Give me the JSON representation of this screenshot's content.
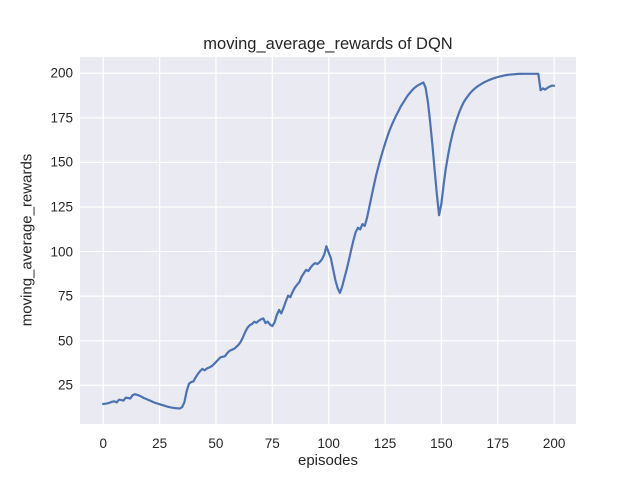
{
  "chart_data": {
    "type": "line",
    "title": "moving_average_rewards of DQN",
    "xlabel": "episodes",
    "ylabel": "moving_average_rewards",
    "legend": null,
    "grid": true,
    "xticks": [
      0,
      25,
      50,
      75,
      100,
      125,
      150,
      175,
      200
    ],
    "yticks": [
      25,
      50,
      75,
      100,
      125,
      150,
      175,
      200
    ],
    "xlim": [
      -10.3,
      209.7
    ],
    "ylim": [
      3.3,
      209.1
    ],
    "style": {
      "line_color": "#4c72b0",
      "line_width": 2.2,
      "axes_bg": "#eaeaf2",
      "grid_color": "#ffffff",
      "text_color": "#262626",
      "figure_bg": "#ffffff"
    },
    "series": [
      {
        "name": "moving_average_rewards",
        "x_start": 0,
        "x_step": 1,
        "values": [
          14.5,
          14.7,
          14.9,
          15.3,
          15.8,
          16.0,
          15.4,
          16.9,
          16.7,
          16.4,
          18.1,
          17.9,
          17.6,
          19.4,
          20.0,
          19.7,
          19.2,
          18.6,
          17.9,
          17.4,
          16.8,
          16.3,
          15.7,
          15.2,
          14.8,
          14.4,
          14.0,
          13.6,
          13.2,
          12.9,
          12.6,
          12.4,
          12.2,
          12.1,
          12.0,
          12.8,
          15.5,
          21.5,
          25.8,
          26.8,
          27.2,
          29.5,
          31.4,
          33.0,
          34.2,
          33.4,
          34.4,
          35.0,
          35.6,
          36.8,
          38.0,
          39.4,
          40.7,
          41.0,
          41.3,
          43.0,
          44.3,
          44.9,
          45.4,
          46.5,
          47.7,
          49.4,
          52.0,
          55.0,
          57.3,
          58.7,
          59.4,
          60.6,
          60.1,
          61.2,
          62.0,
          62.5,
          59.9,
          60.7,
          59.0,
          58.2,
          60.3,
          64.4,
          67.3,
          65.3,
          68.6,
          72.0,
          75.3,
          74.4,
          77.4,
          79.8,
          81.4,
          82.9,
          85.9,
          87.9,
          89.7,
          89.1,
          91.0,
          92.6,
          93.5,
          93.0,
          94.1,
          95.6,
          98.2,
          103.0,
          99.4,
          96.2,
          89.9,
          83.9,
          79.4,
          76.8,
          80.4,
          85.4,
          90.0,
          95.5,
          101.0,
          106.4,
          110.9,
          113.4,
          112.4,
          115.4,
          114.4,
          118.9,
          124.9,
          130.9,
          136.9,
          142.4,
          147.4,
          152.0,
          156.4,
          160.4,
          164.4,
          167.9,
          171.0,
          173.9,
          176.4,
          178.9,
          181.4,
          183.4,
          185.4,
          187.4,
          188.9,
          190.4,
          191.7,
          192.7,
          193.5,
          194.2,
          194.8,
          191.9,
          183.9,
          172.9,
          159.9,
          145.9,
          131.9,
          120.4,
          126.9,
          137.9,
          146.9,
          154.4,
          160.9,
          166.4,
          170.9,
          174.9,
          178.4,
          181.4,
          183.9,
          185.9,
          187.7,
          189.2,
          190.5,
          191.6,
          192.6,
          193.4,
          194.2,
          194.9,
          195.5,
          196.1,
          196.6,
          197.1,
          197.5,
          197.9,
          198.2,
          198.5,
          198.8,
          199.0,
          199.2,
          199.3,
          199.4,
          199.5,
          199.6,
          199.65,
          199.7,
          199.7,
          199.7,
          199.7,
          199.7,
          199.7,
          199.7,
          199.7,
          190.5,
          191.5,
          190.8,
          191.8,
          192.5,
          193.0,
          193.0
        ]
      }
    ]
  }
}
